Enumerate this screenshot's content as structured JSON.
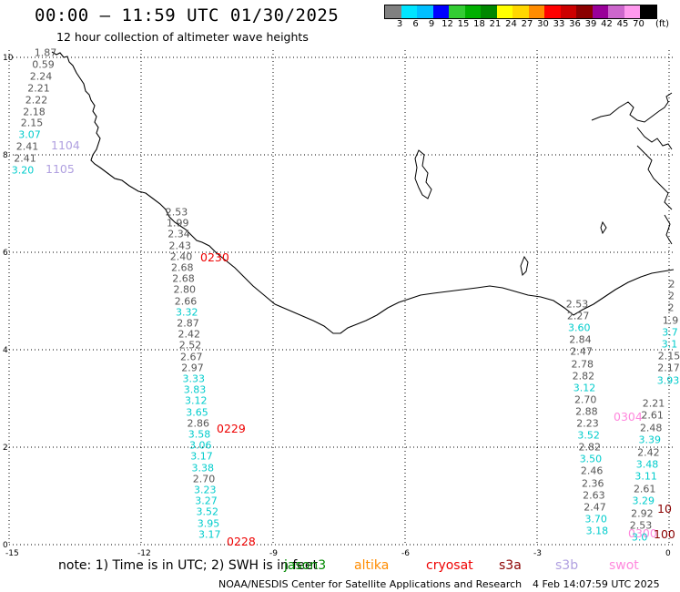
{
  "title": "00:00 — 11:59 UTC 01/30/2025",
  "subtitle": "12 hour collection of altimeter wave heights",
  "scale": {
    "unit": "(ft)",
    "bins": [
      {
        "label": "3",
        "color": "#808080"
      },
      {
        "label": "6",
        "color": "#00e5ff"
      },
      {
        "label": "9",
        "color": "#00bfff"
      },
      {
        "label": "12",
        "color": "#0000ff"
      },
      {
        "label": "15",
        "color": "#33cc33"
      },
      {
        "label": "18",
        "color": "#00b000"
      },
      {
        "label": "21",
        "color": "#008800"
      },
      {
        "label": "24",
        "color": "#ffff00"
      },
      {
        "label": "27",
        "color": "#ffd700"
      },
      {
        "label": "30",
        "color": "#ff8c00"
      },
      {
        "label": "33",
        "color": "#ff0000"
      },
      {
        "label": "36",
        "color": "#cc0000"
      },
      {
        "label": "39",
        "color": "#8b0000"
      },
      {
        "label": "42",
        "color": "#990099"
      },
      {
        "label": "45",
        "color": "#cc66cc"
      },
      {
        "label": "70",
        "color": "#ff99ee"
      },
      {
        "label": "",
        "color": "#000000"
      }
    ]
  },
  "axes": {
    "x_ticks": [
      "-15",
      "-12",
      "-9",
      "-6",
      "-3",
      "0"
    ],
    "y_ticks": [
      "0",
      "2",
      "4",
      "6",
      "8",
      "10"
    ]
  },
  "pass_ids": [
    {
      "label": "1104",
      "color": "#b0a0e0"
    },
    {
      "label": "1105",
      "color": "#b0a0e0"
    },
    {
      "label": "0230",
      "color": "#ee0000"
    },
    {
      "label": "0229",
      "color": "#ee0000"
    },
    {
      "label": "0228",
      "color": "#ee0000"
    },
    {
      "label": "0304",
      "color": "#ff88dd"
    },
    {
      "label": "10",
      "color": "#8b0000"
    },
    {
      "label": "0300",
      "color": "#ff88dd"
    },
    {
      "label": "100",
      "color": "#8b0000"
    }
  ],
  "tracks": {
    "t1": {
      "labels": [
        "1.87",
        "0.59",
        "2.24",
        "2.21",
        "2.22",
        "2.18",
        "2.15",
        "3.07",
        "2.41",
        "2.41",
        "3.20"
      ],
      "colors": [
        "#555",
        "#555",
        "#555",
        "#555",
        "#555",
        "#555",
        "#555",
        "#00cccc",
        "#555",
        "#555",
        "#00cccc"
      ]
    },
    "t2": {
      "labels": [
        "2.53",
        "1.99",
        "2.34",
        "2.43",
        "2.40",
        "2.68",
        "2.68",
        "2.80",
        "2.66",
        "3.32",
        "2.87",
        "2.42",
        "2.52",
        "2.67",
        "2.97",
        "3.33",
        "3.83",
        "3.12",
        "3.65",
        "2.86",
        "3.58",
        "3.06",
        "3.17",
        "3.38",
        "2.70",
        "3.23",
        "3.27",
        "3.52",
        "3.95",
        "3.17"
      ],
      "colors": [
        "#555",
        "#555",
        "#555",
        "#555",
        "#555",
        "#555",
        "#555",
        "#555",
        "#555",
        "#00cccc",
        "#555",
        "#555",
        "#555",
        "#555",
        "#555",
        "#00cccc",
        "#00cccc",
        "#00cccc",
        "#00cccc",
        "#555",
        "#00cccc",
        "#00cccc",
        "#00cccc",
        "#00cccc",
        "#555",
        "#00cccc",
        "#00cccc",
        "#00cccc",
        "#00cccc",
        "#00cccc"
      ]
    },
    "t3": {
      "labels": [
        "2.53",
        "2.27",
        "3.60",
        "2.84",
        "2.47",
        "2.78",
        "2.82",
        "3.12",
        "2.70",
        "2.88",
        "2.23",
        "3.52",
        "2.82",
        "3.50",
        "2.46",
        "2.36",
        "2.63",
        "2.47",
        "3.70",
        "3.18"
      ],
      "colors": [
        "#555",
        "#555",
        "#00cccc",
        "#555",
        "#555",
        "#555",
        "#555",
        "#00cccc",
        "#555",
        "#555",
        "#555",
        "#00cccc",
        "#555",
        "#00cccc",
        "#555",
        "#555",
        "#555",
        "#555",
        "#00cccc",
        "#00cccc"
      ]
    },
    "t4": {
      "labels": [
        "2.21",
        "2.61",
        "2.48",
        "3.39",
        "2.42",
        "3.48",
        "3.11",
        "2.61",
        "3.29",
        "2.92",
        "2.53",
        "3.0"
      ],
      "colors": [
        "#555",
        "#555",
        "#555",
        "#00cccc",
        "#555",
        "#00cccc",
        "#00cccc",
        "#555",
        "#00cccc",
        "#555",
        "#555",
        "#00cccc"
      ]
    },
    "t5": {
      "labels": [
        "2",
        "2",
        "2",
        "1.9",
        "3.7",
        "3.1",
        "2.15",
        "2.17",
        "3.93"
      ],
      "colors": [
        "#555",
        "#555",
        "#555",
        "#555",
        "#00cccc",
        "#00cccc",
        "#555",
        "#555",
        "#00cccc"
      ]
    }
  },
  "note": {
    "text": "note:  1) Time is in UTC;  2) SWH is in feet",
    "satellites": [
      {
        "label": "jason3",
        "color": "#008800"
      },
      {
        "label": "altika",
        "color": "#ff8c00"
      },
      {
        "label": "cryosat",
        "color": "#ee0000"
      },
      {
        "label": "s3a",
        "color": "#8b0000"
      },
      {
        "label": "s3b",
        "color": "#b0a0e0"
      },
      {
        "label": "swot",
        "color": "#ff88dd"
      }
    ]
  },
  "footer": {
    "left": "NOAA/NESDIS Center for Satellite Applications and Research",
    "right": "4 Feb 14:07:59 UTC 2025"
  }
}
